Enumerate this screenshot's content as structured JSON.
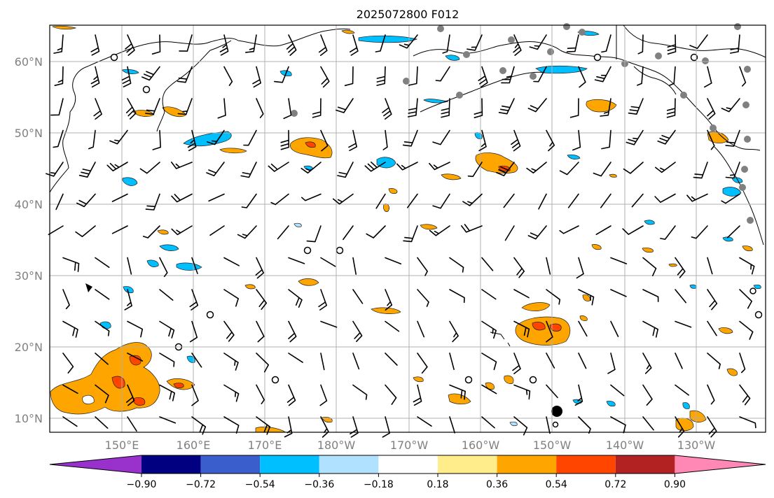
{
  "title": "2025072800 F012",
  "map": {
    "lat_labels": [
      "10°N",
      "20°N",
      "30°N",
      "40°N",
      "50°N",
      "60°N"
    ],
    "lon_labels": [
      "150°E",
      "160°E",
      "170°E",
      "180°W",
      "170°W",
      "160°W",
      "150°W",
      "140°W",
      "130°W"
    ]
  },
  "colorbar": {
    "tick_labels": [
      "−0.90",
      "−0.72",
      "−0.54",
      "−0.36",
      "−0.18",
      "0.18",
      "0.36",
      "0.54",
      "0.72",
      "0.90"
    ],
    "colors": [
      "#9932cc",
      "#000080",
      "#3a5fcd",
      "#00bfff",
      "#b0e2ff",
      "#ffffff",
      "#ffec8b",
      "#ffa500",
      "#ff4500",
      "#b22222",
      "#ff88b4"
    ]
  }
}
